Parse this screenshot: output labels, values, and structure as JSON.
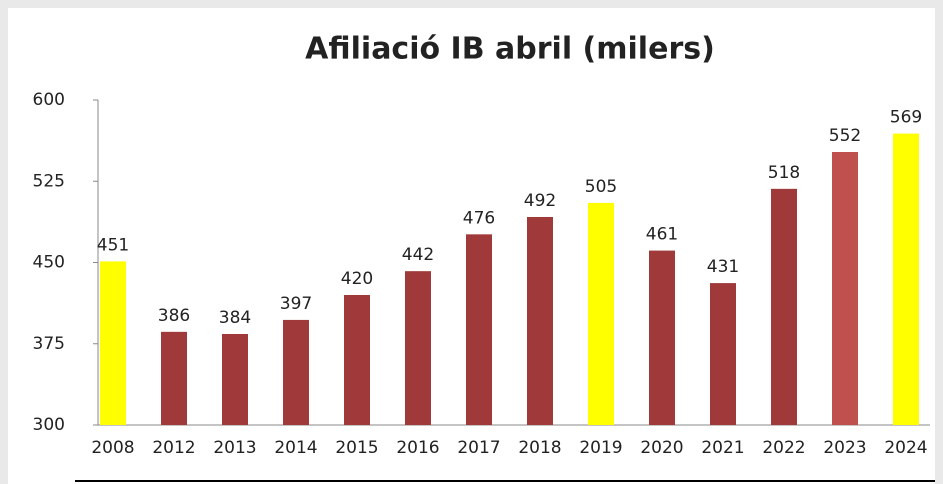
{
  "chart_data": {
    "type": "bar",
    "title": "Afiliació IB abril (milers)",
    "categories": [
      "2008",
      "2012",
      "2013",
      "2014",
      "2015",
      "2016",
      "2017",
      "2018",
      "2019",
      "2020",
      "2021",
      "2022",
      "2023",
      "2024"
    ],
    "values": [
      451,
      386,
      384,
      397,
      420,
      442,
      476,
      492,
      505,
      461,
      431,
      518,
      552,
      569
    ],
    "colors": [
      "#ffff00",
      "#a0393a",
      "#a0393a",
      "#a0393a",
      "#a0393a",
      "#a0393a",
      "#a0393a",
      "#a0393a",
      "#ffff00",
      "#a0393a",
      "#a0393a",
      "#a0393a",
      "#c0504d",
      "#ffff00"
    ],
    "ylim": [
      300,
      600
    ],
    "yticks": [
      300,
      375,
      450,
      525,
      600
    ],
    "grid": false
  }
}
